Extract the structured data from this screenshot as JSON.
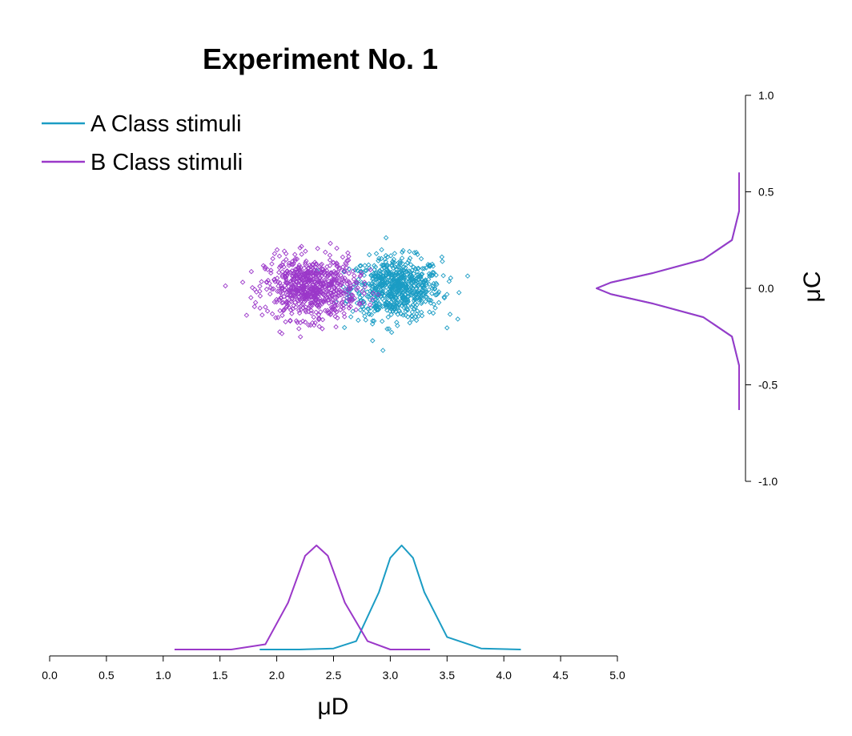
{
  "chart_data": {
    "type": "scatter",
    "title": "Experiment No. 1",
    "xlabel": "μD",
    "ylabel": "μC",
    "xlim": [
      0,
      5
    ],
    "ylim": [
      -1,
      1
    ],
    "x_ticks": [
      "0.0",
      "0.5",
      "1.0",
      "1.5",
      "2.0",
      "2.5",
      "3.0",
      "3.5",
      "4.0",
      "4.5",
      "5.0"
    ],
    "y_ticks": [
      "1.0",
      "0.5",
      "0.0",
      "-0.5",
      "-1.0"
    ],
    "legend_position": "top-left",
    "grid": false,
    "point_count_per_series": 700,
    "series": [
      {
        "name": "A Class stimuli",
        "color": "#1b9cc4",
        "marker": "diamond-open",
        "x_center": 3.05,
        "y_center": 0.0,
        "x_spread": 0.2,
        "y_spread": 0.08,
        "density_x": {
          "x": [
            1.85,
            2.2,
            2.5,
            2.7,
            2.9,
            3.0,
            3.1,
            3.2,
            3.3,
            3.5,
            3.8,
            4.15
          ],
          "y": [
            0.0,
            0.0,
            0.01,
            0.08,
            0.55,
            0.88,
            1.0,
            0.88,
            0.55,
            0.12,
            0.01,
            0.0
          ]
        },
        "density_y": {
          "x": [
            -0.63,
            -0.4,
            -0.25,
            -0.15,
            -0.08,
            -0.03,
            0.0,
            0.03,
            0.08,
            0.15,
            0.25,
            0.4,
            0.6
          ],
          "y": [
            0.0,
            0.0,
            0.05,
            0.25,
            0.6,
            0.9,
            1.0,
            0.9,
            0.6,
            0.25,
            0.05,
            0.0,
            0.0
          ]
        }
      },
      {
        "name": "B Class stimuli",
        "color": "#9b38c9",
        "marker": "diamond-open",
        "x_center": 2.3,
        "y_center": 0.0,
        "x_spread": 0.2,
        "y_spread": 0.08,
        "density_x": {
          "x": [
            1.1,
            1.6,
            1.9,
            2.1,
            2.25,
            2.35,
            2.45,
            2.6,
            2.8,
            3.0,
            3.35
          ],
          "y": [
            0.0,
            0.0,
            0.05,
            0.45,
            0.9,
            1.0,
            0.9,
            0.45,
            0.08,
            0.0,
            0.0
          ]
        },
        "density_y": {
          "x": [
            -0.63,
            -0.4,
            -0.25,
            -0.15,
            -0.08,
            -0.03,
            0.0,
            0.03,
            0.08,
            0.15,
            0.25,
            0.4,
            0.6
          ],
          "y": [
            0.0,
            0.0,
            0.05,
            0.25,
            0.6,
            0.9,
            1.0,
            0.9,
            0.6,
            0.25,
            0.05,
            0.0,
            0.0
          ]
        }
      }
    ]
  }
}
